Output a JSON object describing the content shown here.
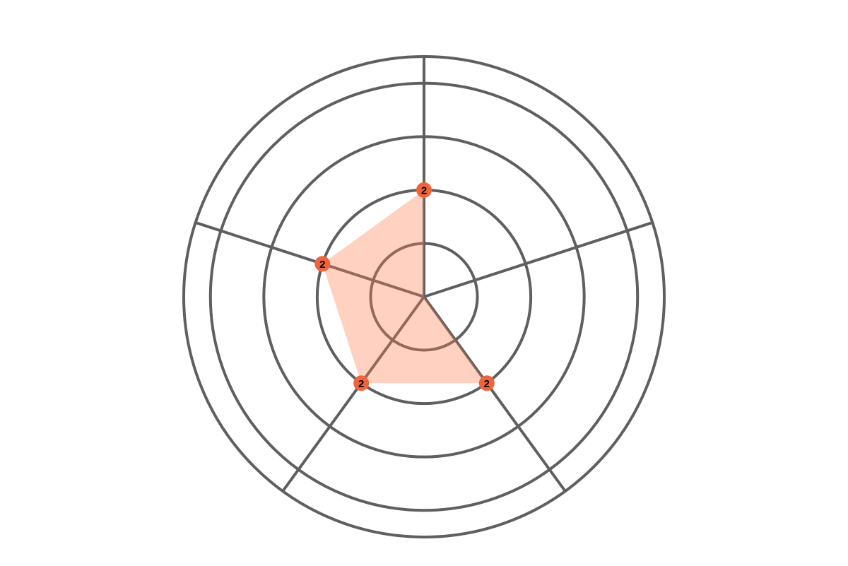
{
  "chart_data": {
    "type": "radar",
    "categories": [
      null,
      null,
      null,
      null,
      null
    ],
    "values": [
      2,
      0,
      2,
      2,
      2
    ],
    "color": "#f0643c",
    "fill_color": "#ff7a4d",
    "grid_color": "#5f5f5f",
    "rlim": [
      0,
      4.5
    ],
    "rticks": [
      1,
      2,
      3,
      4
    ],
    "grid": true
  }
}
